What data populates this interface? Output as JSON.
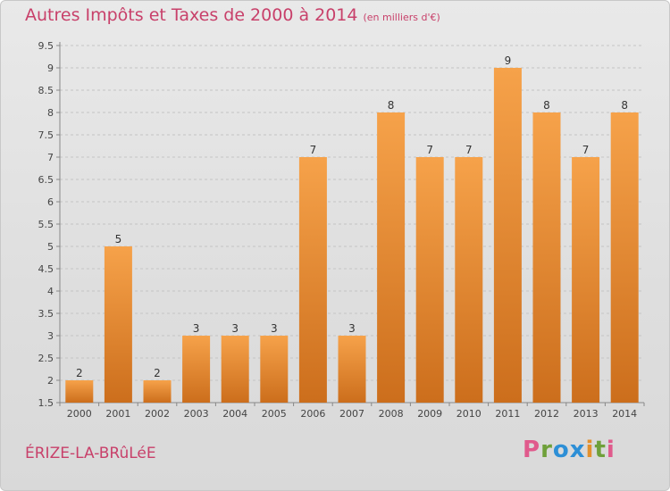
{
  "title": {
    "main": "Autres Impôts et Taxes de 2000 à 2014",
    "unit": "(en milliers d'€)"
  },
  "commune": "ÉRIZE-LA-BRûLéE",
  "logo_text": "Proxiti",
  "colors": {
    "bar_top": "#f6a24a",
    "bar_bottom": "#cc6e1c",
    "title": "#c8406a",
    "grid": "#c4c4c4"
  },
  "chart_data": {
    "type": "bar",
    "categories": [
      "2000",
      "2001",
      "2002",
      "2003",
      "2004",
      "2005",
      "2006",
      "2007",
      "2008",
      "2009",
      "2010",
      "2011",
      "2012",
      "2013",
      "2014"
    ],
    "values": [
      2,
      5,
      2,
      3,
      3,
      3,
      7,
      3,
      8,
      7,
      7,
      9,
      8,
      7,
      8
    ],
    "data_labels": [
      "2",
      "5",
      "2",
      "3",
      "3",
      "3",
      "7",
      "3",
      "8",
      "7",
      "7",
      "9",
      "8",
      "7",
      "8"
    ],
    "ylim": [
      1.5,
      9.5
    ],
    "yticks": [
      "1.5",
      "2",
      "2.5",
      "3",
      "3.5",
      "4",
      "4.5",
      "5",
      "5.5",
      "6",
      "6.5",
      "7",
      "7.5",
      "8",
      "8.5",
      "9",
      "9.5"
    ],
    "grid": true
  }
}
